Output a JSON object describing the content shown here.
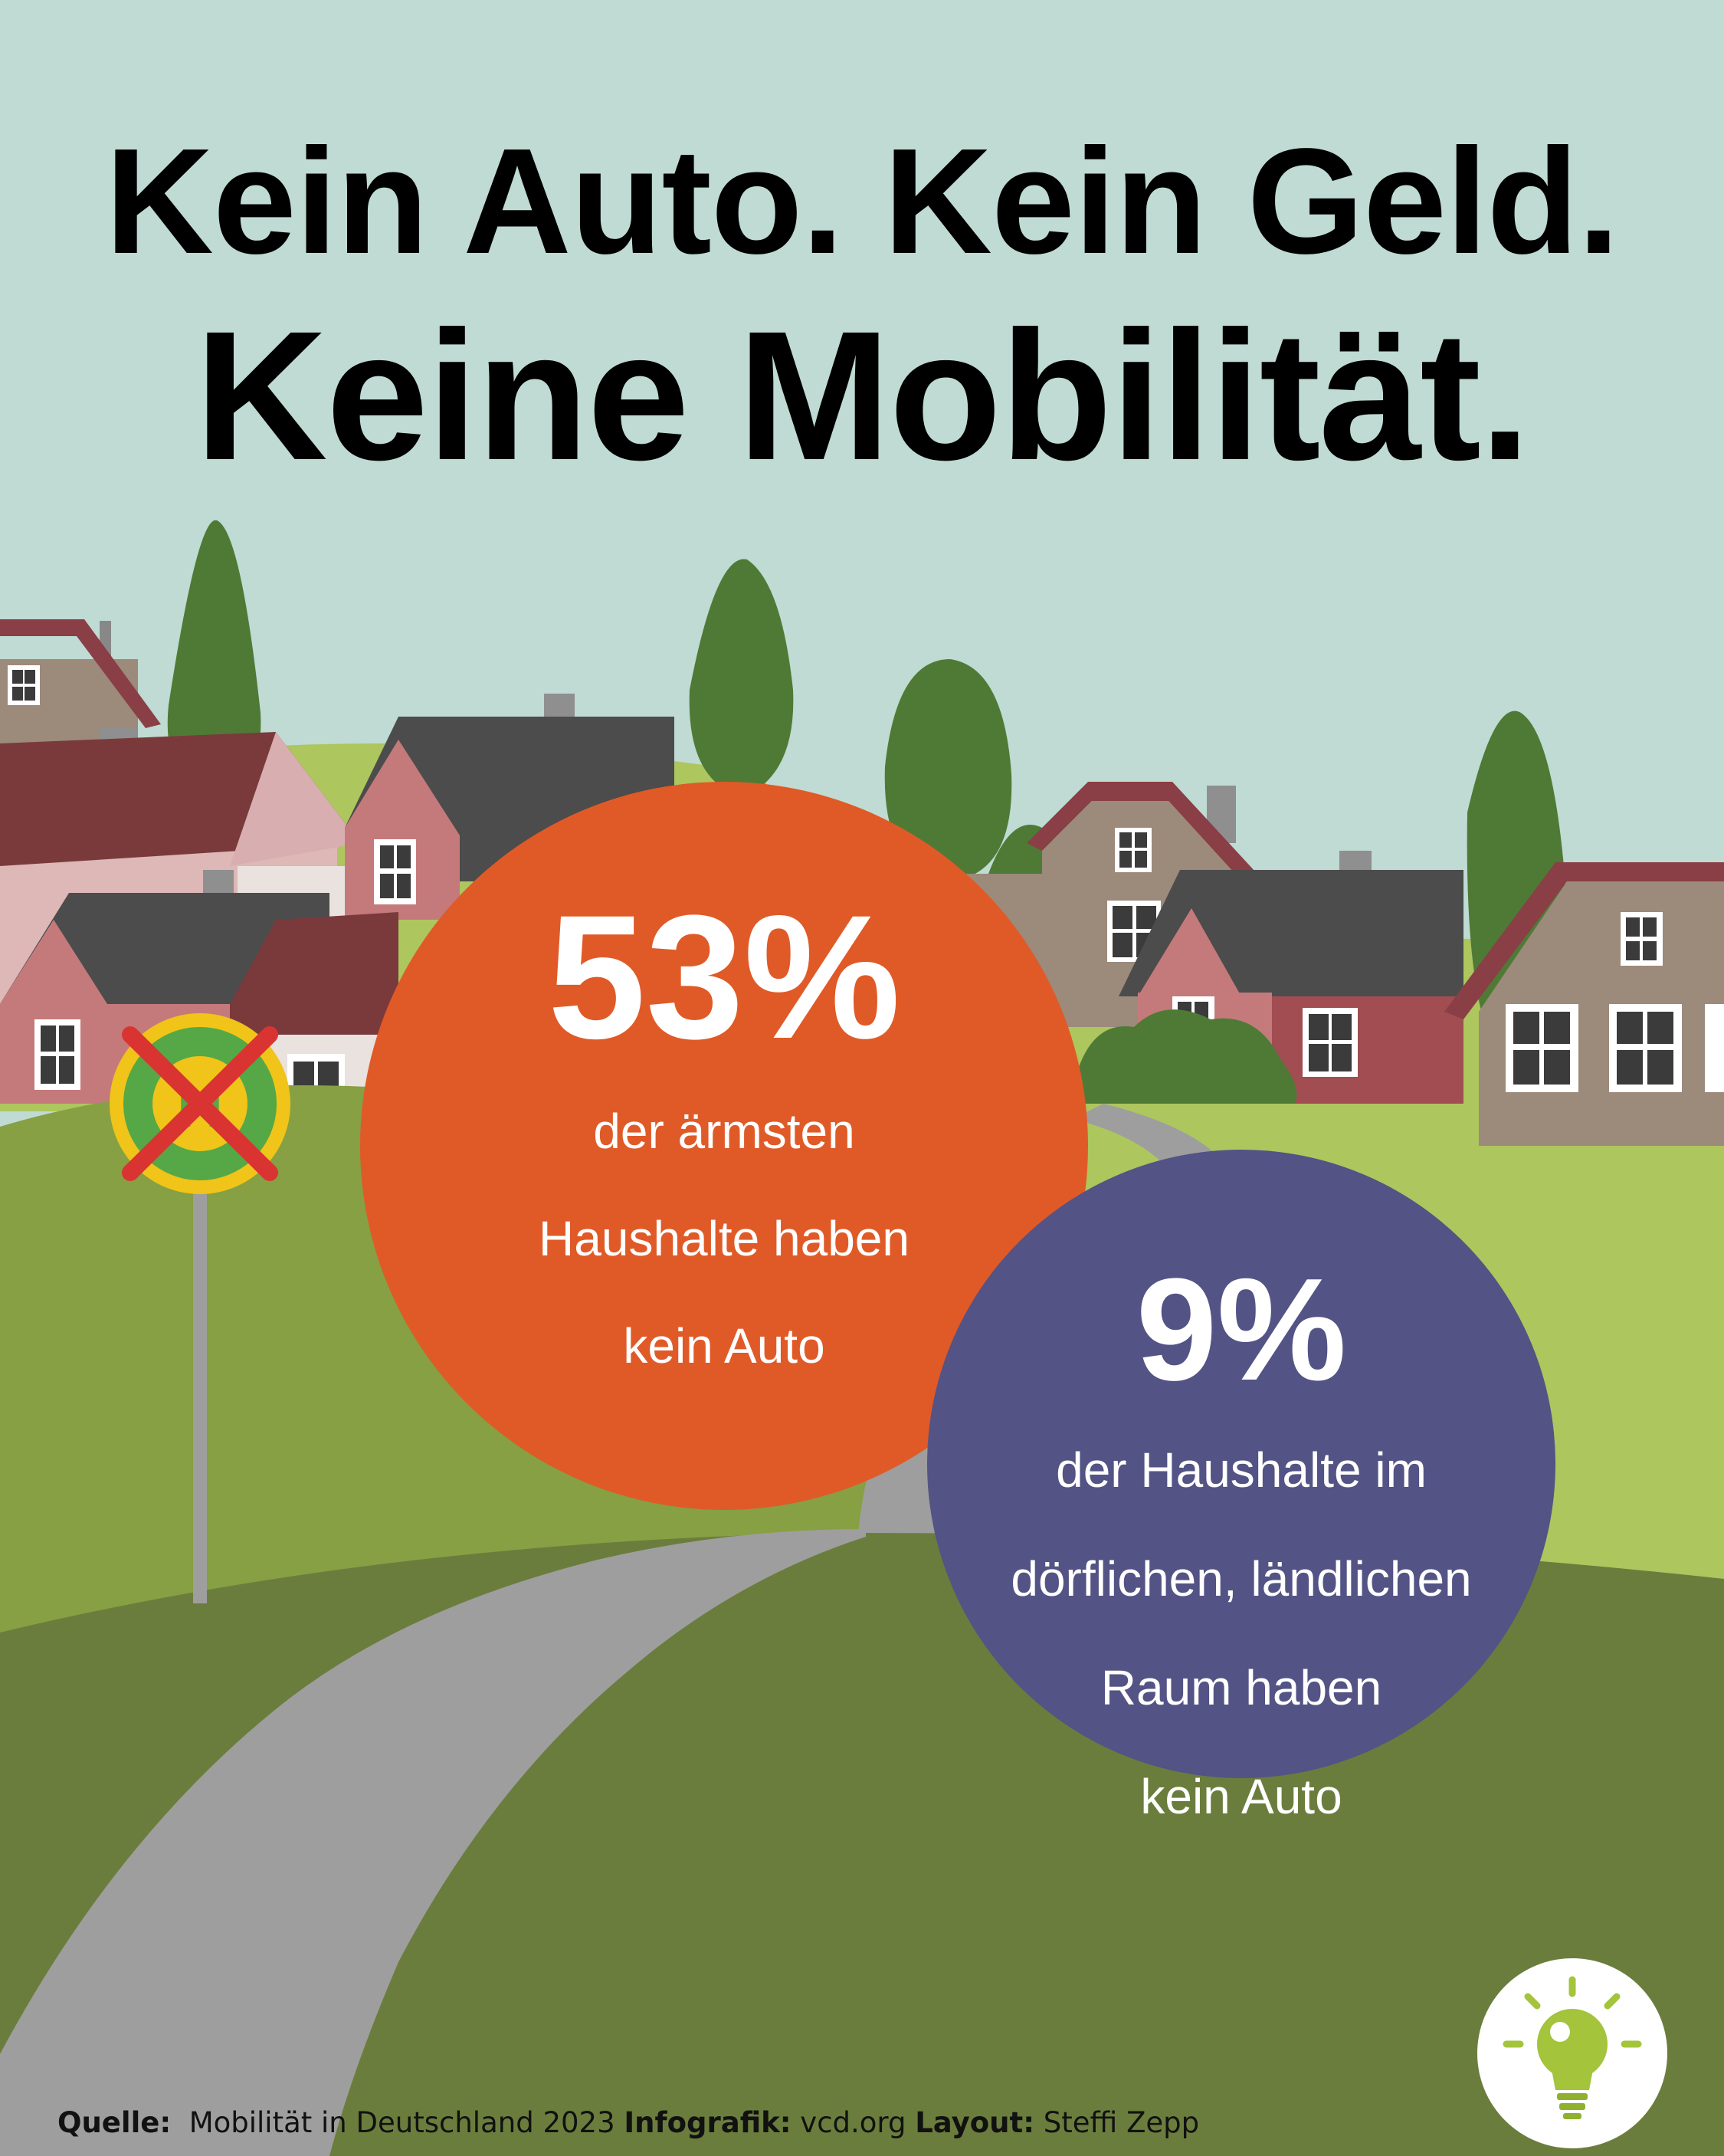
{
  "headline": {
    "line1": "Kein Auto. Kein Geld.",
    "line2": "Keine Mobilität."
  },
  "stats": [
    {
      "value": "53%",
      "lines": [
        "der ärmsten",
        "Haushalte haben",
        "kein Auto"
      ],
      "color": "#e05a27"
    },
    {
      "value": "9%",
      "lines": [
        "der Haushalte im",
        "dörflichen, ländlichen",
        "Raum haben",
        "kein Auto"
      ],
      "color": "#535385"
    }
  ],
  "footer": {
    "source_label": "Quelle:",
    "source_value": "Mobilität in Deutschland 2023",
    "infographic_label": "Infografik:",
    "infographic_value": "vcd.org",
    "layout_label": "Layout:",
    "layout_value": "Steffi Zepp"
  },
  "icons": {
    "bus_stop_sign": "crossed-out-bus-stop-sign-icon",
    "idea": "lightbulb-icon"
  },
  "colors": {
    "sky": "#bfdbd3",
    "accent_orange": "#e05a27",
    "accent_purple": "#535385",
    "grass_light": "#adc65e",
    "grass_mid": "#86a043",
    "grass_dark": "#6b7d3d",
    "road": "#9e9e9e",
    "tree": "#4f7a35"
  }
}
